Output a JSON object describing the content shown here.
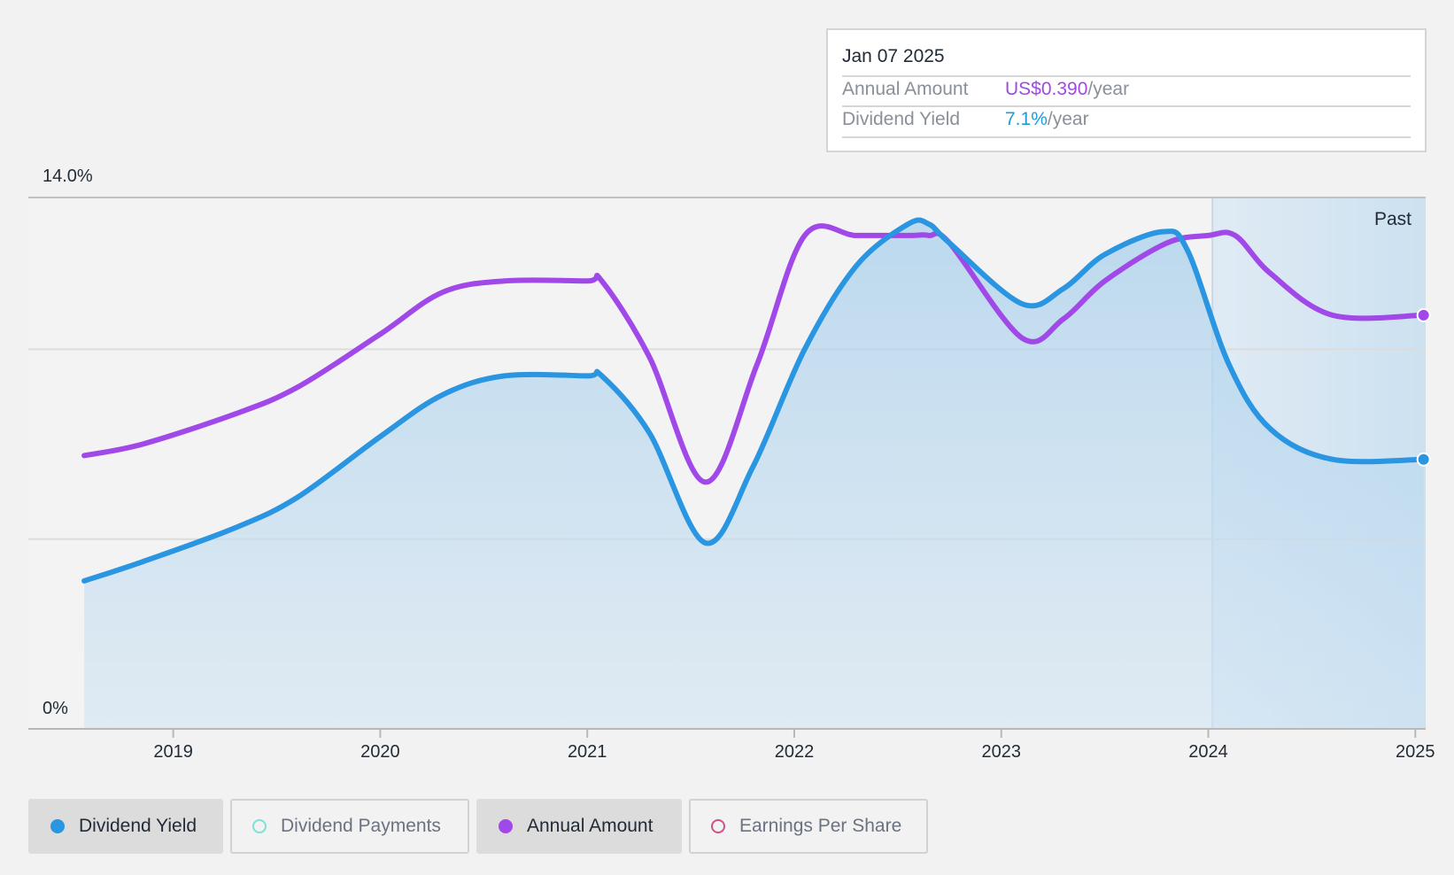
{
  "tooltip": {
    "date": "Jan 07 2025",
    "rows": [
      {
        "label": "Annual Amount",
        "value": "US$0.390",
        "unit": "/year",
        "color": "#a148e8"
      },
      {
        "label": "Dividend Yield",
        "value": "7.1%",
        "unit": "/year",
        "color": "#1f9bd6"
      }
    ]
  },
  "legend": [
    {
      "label": "Dividend Yield",
      "active": true,
      "dot_color": "#2a95e0",
      "filled": true
    },
    {
      "label": "Dividend Payments",
      "active": false,
      "dot_color": "#7de0d6",
      "filled": false
    },
    {
      "label": "Annual Amount",
      "active": true,
      "dot_color": "#a148e8",
      "filled": true
    },
    {
      "label": "Earnings Per Share",
      "active": false,
      "dot_color": "#d0508a",
      "filled": false
    }
  ],
  "chart_data": {
    "type": "line",
    "y_axis_labels": [
      "14.0%",
      "0%"
    ],
    "ylim": [
      0,
      14
    ],
    "x_ticks": [
      "2019",
      "2020",
      "2021",
      "2022",
      "2023",
      "2024",
      "2025"
    ],
    "xlim": [
      2018.3,
      2025.05
    ],
    "past_label": "Past",
    "past_start": 2024.02,
    "grid": true,
    "series": [
      {
        "name": "Dividend Yield",
        "color": "#2a95e0",
        "area": true,
        "x": [
          2018.57,
          2018.85,
          2019.3,
          2019.6,
          2020.0,
          2020.3,
          2020.6,
          2021.0,
          2021.07,
          2021.3,
          2021.57,
          2021.8,
          2022.05,
          2022.3,
          2022.55,
          2022.65,
          2022.75,
          2023.1,
          2023.3,
          2023.5,
          2023.78,
          2023.9,
          2024.1,
          2024.3,
          2024.6,
          2025.04
        ],
        "y": [
          3.9,
          4.4,
          5.3,
          6.1,
          7.7,
          8.8,
          9.3,
          9.3,
          9.3,
          7.8,
          4.9,
          6.9,
          10.0,
          12.2,
          13.3,
          13.3,
          12.8,
          11.2,
          11.6,
          12.5,
          13.1,
          12.6,
          9.6,
          7.9,
          7.1,
          7.1
        ]
      },
      {
        "name": "Annual Amount",
        "color": "#a148e8",
        "area": false,
        "x": [
          2018.57,
          2018.85,
          2019.3,
          2019.6,
          2020.0,
          2020.3,
          2020.6,
          2021.0,
          2021.07,
          2021.3,
          2021.57,
          2021.82,
          2022.05,
          2022.3,
          2022.55,
          2022.65,
          2022.75,
          2023.1,
          2023.3,
          2023.5,
          2023.8,
          2024.0,
          2024.13,
          2024.3,
          2024.6,
          2025.04
        ],
        "y": [
          7.2,
          7.5,
          8.3,
          9.0,
          10.4,
          11.5,
          11.8,
          11.8,
          11.8,
          9.8,
          6.5,
          9.6,
          13.0,
          13.0,
          13.0,
          13.0,
          12.8,
          10.3,
          10.8,
          11.8,
          12.8,
          13.0,
          13.0,
          12.0,
          10.9,
          10.9
        ]
      }
    ]
  }
}
